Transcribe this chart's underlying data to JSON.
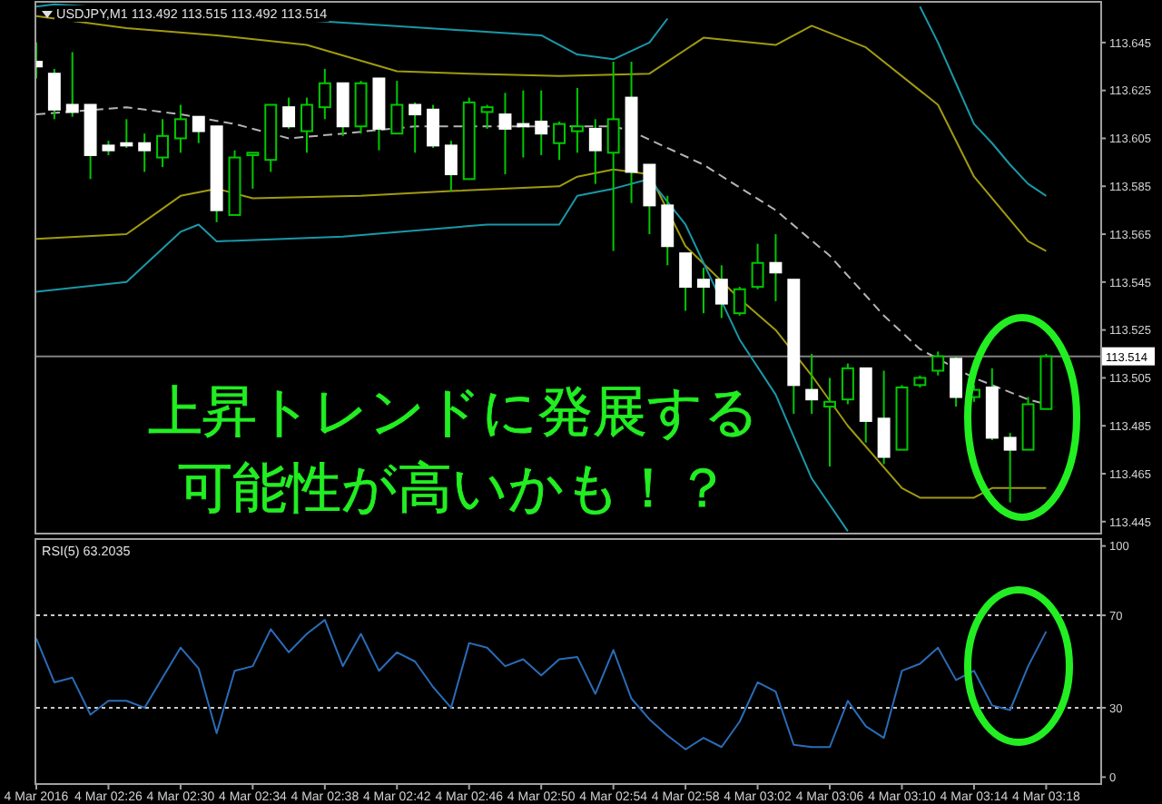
{
  "chart_data": [
    {
      "type": "candlestick",
      "title": "USDJPY,M1 113.492 113.515 113.492 113.514",
      "color": "#00c800",
      "colors": [
        "#ffffff",
        "#ffffff",
        "#ffffff",
        "#ffffff",
        "#ffffff",
        "#ffffff",
        "#ffffff",
        "#00c800",
        "#00c800",
        "#ffffff",
        "#ffffff",
        "#00c800",
        "#00c800",
        "#00c800",
        "#ffffff",
        "#00c800",
        "#00c800",
        "#ffffff",
        "#00c800",
        "#ffffff",
        "#00c800",
        "#ffffff",
        "#ffffff",
        "#ffffff",
        "#00c800",
        "#00c800",
        "#ffffff",
        "#ffffff",
        "#ffffff",
        "#00c800",
        "#00c800",
        "#ffffff",
        "#00c800",
        "#ffffff",
        "#ffffff",
        "#ffffff",
        "#ffffff",
        "#ffffff",
        "#ffffff",
        "#00c800",
        "#00c800",
        "#ffffff",
        "#ffffff",
        "#ffffff",
        "#00c800",
        "#00c800",
        "#ffffff",
        "#ffffff",
        "#00c800",
        "#00c800",
        "#00c800",
        "#ffffff",
        "#00c800",
        "#ffffff",
        "#ffffff",
        "#00c800",
        "#00c800"
      ],
      "x": [
        "2016-03-04T02:22",
        "2016-03-04T02:23",
        "2016-03-04T02:24",
        "2016-03-04T02:25",
        "2016-03-04T02:26",
        "2016-03-04T02:27",
        "2016-03-04T02:28",
        "2016-03-04T02:29",
        "2016-03-04T02:30",
        "2016-03-04T02:31",
        "2016-03-04T02:32",
        "2016-03-04T02:33",
        "2016-03-04T02:34",
        "2016-03-04T02:35",
        "2016-03-04T02:36",
        "2016-03-04T02:37",
        "2016-03-04T02:38",
        "2016-03-04T02:39",
        "2016-03-04T02:40",
        "2016-03-04T02:41",
        "2016-03-04T02:42",
        "2016-03-04T02:43",
        "2016-03-04T02:44",
        "2016-03-04T02:45",
        "2016-03-04T02:46",
        "2016-03-04T02:47",
        "2016-03-04T02:48",
        "2016-03-04T02:49",
        "2016-03-04T02:50",
        "2016-03-04T02:51",
        "2016-03-04T02:52",
        "2016-03-04T02:53",
        "2016-03-04T02:54",
        "2016-03-04T02:55",
        "2016-03-04T02:56",
        "2016-03-04T02:57",
        "2016-03-04T02:58",
        "2016-03-04T02:59",
        "2016-03-04T03:00",
        "2016-03-04T03:01",
        "2016-03-04T03:02",
        "2016-03-04T03:03",
        "2016-03-04T03:04",
        "2016-03-04T03:05",
        "2016-03-04T03:06",
        "2016-03-04T03:07",
        "2016-03-04T03:08",
        "2016-03-04T03:09",
        "2016-03-04T03:10",
        "2016-03-04T03:11",
        "2016-03-04T03:12",
        "2016-03-04T03:13",
        "2016-03-04T03:14",
        "2016-03-04T03:15",
        "2016-03-04T03:16",
        "2016-03-04T03:17",
        "2016-03-04T03:18"
      ],
      "ohlc": [
        [
          113.637,
          113.645,
          113.63,
          113.635
        ],
        [
          113.632,
          113.634,
          113.613,
          113.617
        ],
        [
          113.619,
          113.641,
          113.614,
          113.616
        ],
        [
          113.619,
          113.619,
          113.588,
          113.598
        ],
        [
          113.602,
          113.604,
          113.598,
          113.6
        ],
        [
          113.603,
          113.613,
          113.601,
          113.602
        ],
        [
          113.603,
          113.607,
          113.591,
          113.6
        ],
        [
          113.597,
          113.613,
          113.593,
          113.606
        ],
        [
          113.605,
          113.619,
          113.599,
          113.613
        ],
        [
          113.614,
          113.614,
          113.603,
          113.608
        ],
        [
          113.61,
          113.61,
          113.57,
          113.575
        ],
        [
          113.573,
          113.6,
          113.573,
          113.597
        ],
        [
          113.598,
          113.599,
          113.584,
          113.599
        ],
        [
          113.596,
          113.619,
          113.591,
          113.619
        ],
        [
          113.618,
          113.622,
          113.609,
          113.61
        ],
        [
          113.608,
          113.622,
          113.599,
          113.619
        ],
        [
          113.618,
          113.634,
          113.613,
          113.628
        ],
        [
          113.628,
          113.628,
          113.606,
          113.61
        ],
        [
          113.61,
          113.629,
          113.607,
          113.628
        ],
        [
          113.63,
          113.63,
          113.6,
          113.609
        ],
        [
          113.607,
          113.629,
          113.607,
          113.619
        ],
        [
          113.619,
          113.62,
          113.599,
          113.615
        ],
        [
          113.617,
          113.619,
          113.601,
          113.602
        ],
        [
          113.602,
          113.604,
          113.583,
          113.59
        ],
        [
          113.588,
          113.622,
          113.588,
          113.62
        ],
        [
          113.616,
          113.619,
          113.609,
          113.618
        ],
        [
          113.615,
          113.624,
          113.59,
          113.609
        ],
        [
          113.611,
          113.625,
          113.597,
          113.61
        ],
        [
          113.612,
          113.625,
          113.598,
          113.607
        ],
        [
          113.603,
          113.612,
          113.596,
          113.611
        ],
        [
          113.608,
          113.626,
          113.599,
          113.61
        ],
        [
          113.609,
          113.613,
          113.586,
          113.6
        ],
        [
          113.599,
          113.637,
          113.558,
          113.613
        ],
        [
          113.622,
          113.637,
          113.578,
          113.591
        ],
        [
          113.594,
          113.594,
          113.565,
          113.577
        ],
        [
          113.577,
          113.581,
          113.552,
          113.56
        ],
        [
          113.557,
          113.557,
          113.533,
          113.543
        ],
        [
          113.546,
          113.551,
          113.532,
          113.543
        ],
        [
          113.546,
          113.552,
          113.53,
          113.536
        ],
        [
          113.532,
          113.543,
          113.531,
          113.542
        ],
        [
          113.543,
          113.561,
          113.542,
          113.553
        ],
        [
          113.553,
          113.565,
          113.537,
          113.549
        ],
        [
          113.546,
          113.546,
          113.49,
          113.502
        ],
        [
          113.5,
          113.515,
          113.49,
          113.496
        ],
        [
          113.493,
          113.505,
          113.468,
          113.495
        ],
        [
          113.496,
          113.511,
          113.494,
          113.509
        ],
        [
          113.509,
          113.509,
          113.478,
          113.487
        ],
        [
          113.488,
          113.508,
          113.469,
          113.472
        ],
        [
          113.475,
          113.502,
          113.475,
          113.501
        ],
        [
          113.502,
          113.506,
          113.501,
          113.505
        ],
        [
          113.508,
          113.516,
          113.506,
          113.514
        ],
        [
          113.513,
          113.514,
          113.493,
          113.497
        ],
        [
          113.497,
          113.502,
          113.495,
          113.5
        ],
        [
          113.501,
          113.509,
          113.479,
          113.48
        ],
        [
          113.48,
          113.482,
          113.453,
          113.475
        ],
        [
          113.475,
          113.497,
          113.475,
          113.494
        ],
        [
          113.492,
          113.515,
          113.492,
          113.514
        ]
      ],
      "series": [
        {
          "type": "line",
          "color": "#1a98a8",
          "x": [
            "2016-03-04T02:22",
            "2016-03-04T02:23",
            "2016-03-04T02:50",
            "2016-03-04T02:52",
            "2016-03-04T02:54",
            "2016-03-04T02:56",
            "2016-03-04T02:57"
          ],
          "values": [
            113.66,
            113.661,
            113.648,
            113.64,
            113.638,
            113.645,
            113.655
          ]
        },
        {
          "type": "line",
          "color": "#1a98a8",
          "x": [
            "2016-03-04T03:11",
            "2016-03-04T03:12",
            "2016-03-04T03:13",
            "2016-03-04T03:14",
            "2016-03-04T03:15",
            "2016-03-04T03:16",
            "2016-03-04T03:17",
            "2016-03-04T03:18"
          ],
          "values": [
            113.66,
            113.645,
            113.628,
            113.611,
            113.603,
            113.594,
            113.586,
            113.581
          ]
        },
        {
          "type": "line",
          "color": "#a09a10",
          "x": [
            "2016-03-04T02:22",
            "2016-03-04T02:27",
            "2016-03-04T02:32",
            "2016-03-04T02:37",
            "2016-03-04T02:42",
            "2016-03-04T02:46",
            "2016-03-04T02:51",
            "2016-03-04T02:56",
            "2016-03-04T02:59",
            "2016-03-04T03:03",
            "2016-03-04T03:05",
            "2016-03-04T03:08",
            "2016-03-04T03:12",
            "2016-03-04T03:14",
            "2016-03-04T03:17",
            "2016-03-04T03:18"
          ],
          "values": [
            113.656,
            113.651,
            113.648,
            113.644,
            113.633,
            113.632,
            113.631,
            113.632,
            113.647,
            113.644,
            113.652,
            113.643,
            113.619,
            113.589,
            113.562,
            113.558
          ]
        },
        {
          "type": "line",
          "color": "#b4b4b4",
          "line_style": "dashed",
          "x": [
            "2016-03-04T02:22",
            "2016-03-04T02:27",
            "2016-03-04T02:30",
            "2016-03-04T02:33",
            "2016-03-04T02:36",
            "2016-03-04T02:39",
            "2016-03-04T02:43",
            "2016-03-04T02:48",
            "2016-03-04T02:54",
            "2016-03-04T02:55",
            "2016-03-04T02:59",
            "2016-03-04T03:03",
            "2016-03-04T03:06",
            "2016-03-04T03:09",
            "2016-03-04T03:11",
            "2016-03-04T03:14",
            "2016-03-04T03:17",
            "2016-03-04T03:18"
          ],
          "values": [
            113.615,
            113.618,
            113.615,
            113.611,
            113.605,
            113.607,
            113.61,
            113.61,
            113.61,
            113.608,
            113.594,
            113.575,
            113.556,
            113.531,
            113.517,
            113.505,
            113.496,
            113.494
          ]
        },
        {
          "type": "line",
          "color": "#a09a10",
          "x": [
            "2016-03-04T02:22",
            "2016-03-04T02:27",
            "2016-03-04T02:30",
            "2016-03-04T02:32",
            "2016-03-04T02:34",
            "2016-03-04T02:40",
            "2016-03-04T02:45",
            "2016-03-04T02:51",
            "2016-03-04T02:52",
            "2016-03-04T02:54",
            "2016-03-04T02:56",
            "2016-03-04T02:58",
            "2016-03-04T03:01",
            "2016-03-04T03:03",
            "2016-03-04T03:05",
            "2016-03-04T03:07",
            "2016-03-04T03:10",
            "2016-03-04T03:11",
            "2016-03-04T03:14",
            "2016-03-04T03:15",
            "2016-03-04T03:18"
          ],
          "values": [
            113.563,
            113.565,
            113.581,
            113.584,
            113.58,
            113.581,
            113.583,
            113.585,
            113.589,
            113.592,
            113.59,
            113.56,
            113.538,
            113.525,
            113.506,
            113.485,
            113.459,
            113.455,
            113.455,
            113.459,
            113.459
          ]
        },
        {
          "type": "line",
          "color": "#1a98a8",
          "x": [
            "2016-03-04T02:22",
            "2016-03-04T02:27",
            "2016-03-04T02:30",
            "2016-03-04T02:31",
            "2016-03-04T02:32",
            "2016-03-04T02:39",
            "2016-03-04T02:47",
            "2016-03-04T02:51",
            "2016-03-04T02:52",
            "2016-03-04T02:54",
            "2016-03-04T02:56",
            "2016-03-04T02:58",
            "2016-03-04T03:01",
            "2016-03-04T03:03",
            "2016-03-04T03:05",
            "2016-03-04T03:07"
          ],
          "values": [
            113.541,
            113.545,
            113.566,
            113.569,
            113.562,
            113.564,
            113.569,
            113.569,
            113.581,
            113.584,
            113.588,
            113.569,
            113.521,
            113.498,
            113.463,
            113.441
          ]
        }
      ],
      "xlim": [
        "2016-03-04T02:22",
        "2016-03-04T03:21"
      ],
      "ylim": [
        113.44,
        113.662
      ],
      "yticks": [
        113.445,
        113.465,
        113.485,
        113.505,
        113.525,
        113.545,
        113.565,
        113.585,
        113.605,
        113.625,
        113.645
      ],
      "tick_labels": "y",
      "ref_lines": [
        {
          "axis": "y",
          "value": 113.514,
          "label": "113.514",
          "color": "#808080"
        }
      ],
      "annotations": [
        "上昇トレンドに発展する",
        "可能性が高いかも！？"
      ]
    },
    {
      "type": "line",
      "title": "RSI(5) 63.2035",
      "color": "#2a6cb8",
      "x": [
        "2016-03-04T02:22",
        "2016-03-04T02:23",
        "2016-03-04T02:24",
        "2016-03-04T02:25",
        "2016-03-04T02:26",
        "2016-03-04T02:27",
        "2016-03-04T02:28",
        "2016-03-04T02:29",
        "2016-03-04T02:30",
        "2016-03-04T02:31",
        "2016-03-04T02:32",
        "2016-03-04T02:33",
        "2016-03-04T02:34",
        "2016-03-04T02:35",
        "2016-03-04T02:36",
        "2016-03-04T02:37",
        "2016-03-04T02:38",
        "2016-03-04T02:39",
        "2016-03-04T02:40",
        "2016-03-04T02:41",
        "2016-03-04T02:42",
        "2016-03-04T02:43",
        "2016-03-04T02:44",
        "2016-03-04T02:45",
        "2016-03-04T02:46",
        "2016-03-04T02:47",
        "2016-03-04T02:48",
        "2016-03-04T02:49",
        "2016-03-04T02:50",
        "2016-03-04T02:51",
        "2016-03-04T02:52",
        "2016-03-04T02:53",
        "2016-03-04T02:54",
        "2016-03-04T02:55",
        "2016-03-04T02:56",
        "2016-03-04T02:57",
        "2016-03-04T02:58",
        "2016-03-04T02:59",
        "2016-03-04T03:00",
        "2016-03-04T03:01",
        "2016-03-04T03:02",
        "2016-03-04T03:03",
        "2016-03-04T03:04",
        "2016-03-04T03:05",
        "2016-03-04T03:06",
        "2016-03-04T03:07",
        "2016-03-04T03:08",
        "2016-03-04T03:09",
        "2016-03-04T03:10",
        "2016-03-04T03:11",
        "2016-03-04T03:12",
        "2016-03-04T03:13",
        "2016-03-04T03:14",
        "2016-03-04T03:15",
        "2016-03-04T03:16",
        "2016-03-04T03:17",
        "2016-03-04T03:18"
      ],
      "values": [
        60,
        41,
        43,
        27,
        33,
        33,
        30,
        43,
        56,
        47,
        19,
        46,
        48,
        64,
        54,
        62,
        68,
        48,
        62,
        46,
        54,
        50,
        39,
        30,
        58,
        56,
        48,
        51,
        44,
        51,
        52,
        36,
        55,
        34,
        25,
        18,
        12,
        17,
        13,
        24,
        41,
        37,
        14,
        13,
        13,
        33,
        22,
        17,
        46,
        49,
        56,
        42,
        46,
        31,
        29,
        48,
        63
      ],
      "xlim": [
        "2016-03-04T02:22",
        "2016-03-04T03:21"
      ],
      "ylim": [
        -3,
        103
      ],
      "yticks": [
        0,
        30,
        70,
        100
      ],
      "xticks": [
        {
          "value": "2016-03-04T02:22",
          "label": "4 Mar 2016"
        },
        {
          "value": "2016-03-04T02:26",
          "label": "4 Mar 02:26"
        },
        {
          "value": "2016-03-04T02:30",
          "label": "4 Mar 02:30"
        },
        {
          "value": "2016-03-04T02:34",
          "label": "4 Mar 02:34"
        },
        {
          "value": "2016-03-04T02:38",
          "label": "4 Mar 02:38"
        },
        {
          "value": "2016-03-04T02:42",
          "label": "4 Mar 02:42"
        },
        {
          "value": "2016-03-04T02:46",
          "label": "4 Mar 02:46"
        },
        {
          "value": "2016-03-04T02:50",
          "label": "4 Mar 02:50"
        },
        {
          "value": "2016-03-04T02:54",
          "label": "4 Mar 02:54"
        },
        {
          "value": "2016-03-04T02:58",
          "label": "4 Mar 02:58"
        },
        {
          "value": "2016-03-04T03:02",
          "label": "4 Mar 03:02"
        },
        {
          "value": "2016-03-04T03:06",
          "label": "4 Mar 03:06"
        },
        {
          "value": "2016-03-04T03:10",
          "label": "4 Mar 03:10"
        },
        {
          "value": "2016-03-04T03:14",
          "label": "4 Mar 03:14"
        },
        {
          "value": "2016-03-04T03:18",
          "label": "4 Mar 03:18"
        }
      ],
      "ref_lines": [
        {
          "axis": "y",
          "value": 70,
          "color": "#c8c8c8",
          "line_style": "dotted"
        },
        {
          "axis": "y",
          "value": 30,
          "color": "#c8c8c8",
          "line_style": "dotted"
        }
      ]
    }
  ]
}
